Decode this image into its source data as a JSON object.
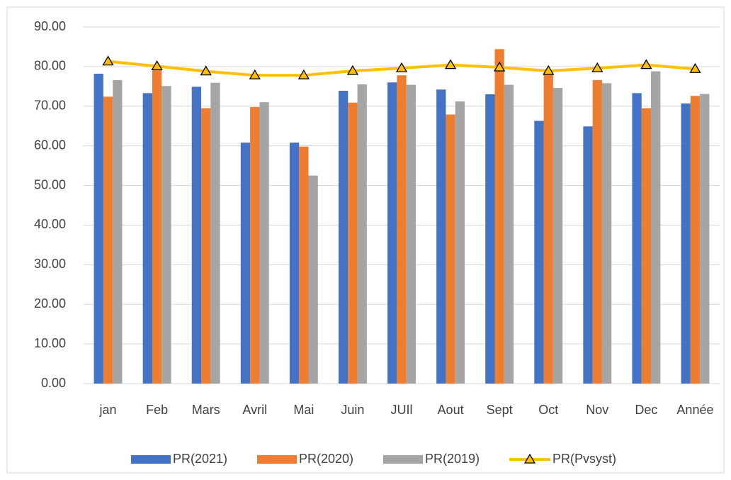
{
  "chart_data": {
    "type": "bar",
    "categories": [
      "jan",
      "Feb",
      "Mars",
      "Avril",
      "Mai",
      "Juin",
      "JUIl",
      "Aout",
      "Sept",
      "Oct",
      "Nov",
      "Dec",
      "Année"
    ],
    "series": [
      {
        "name": "PR(2021)",
        "color": "#4472c4",
        "values": [
          78.2,
          73.3,
          74.9,
          60.8,
          60.8,
          73.9,
          76.0,
          74.2,
          73.0,
          66.3,
          64.9,
          73.3,
          70.7
        ]
      },
      {
        "name": "PR(2020)",
        "color": "#ed7d31",
        "values": [
          72.4,
          79.5,
          69.5,
          69.8,
          59.8,
          70.9,
          77.8,
          67.9,
          84.4,
          78.5,
          76.6,
          69.5,
          72.6
        ]
      },
      {
        "name": "PR(2019)",
        "color": "#a5a5a5",
        "values": [
          76.6,
          75.1,
          75.9,
          71.0,
          52.5,
          75.5,
          75.4,
          71.2,
          75.4,
          74.6,
          75.8,
          78.8,
          73.1
        ]
      },
      {
        "name": "PR(Pvsyst)",
        "color": "#ffc000",
        "type": "line",
        "values": [
          81.3,
          80.1,
          78.8,
          77.8,
          77.8,
          78.9,
          79.6,
          80.4,
          79.8,
          78.9,
          79.6,
          80.4,
          79.4
        ]
      }
    ],
    "ylim": [
      0,
      90
    ],
    "yticks": [
      {
        "value": 0,
        "label": "0.00"
      },
      {
        "value": 10,
        "label": "10.00"
      },
      {
        "value": 20,
        "label": "20.00"
      },
      {
        "value": 30,
        "label": "30.00"
      },
      {
        "value": 40,
        "label": "40.00"
      },
      {
        "value": 50,
        "label": "50.00"
      },
      {
        "value": 60,
        "label": "60.00"
      },
      {
        "value": 70,
        "label": "70.00"
      },
      {
        "value": 80,
        "label": "80.00"
      },
      {
        "value": 90,
        "label": "90.00"
      }
    ],
    "grid": true,
    "legend": "bottom"
  }
}
